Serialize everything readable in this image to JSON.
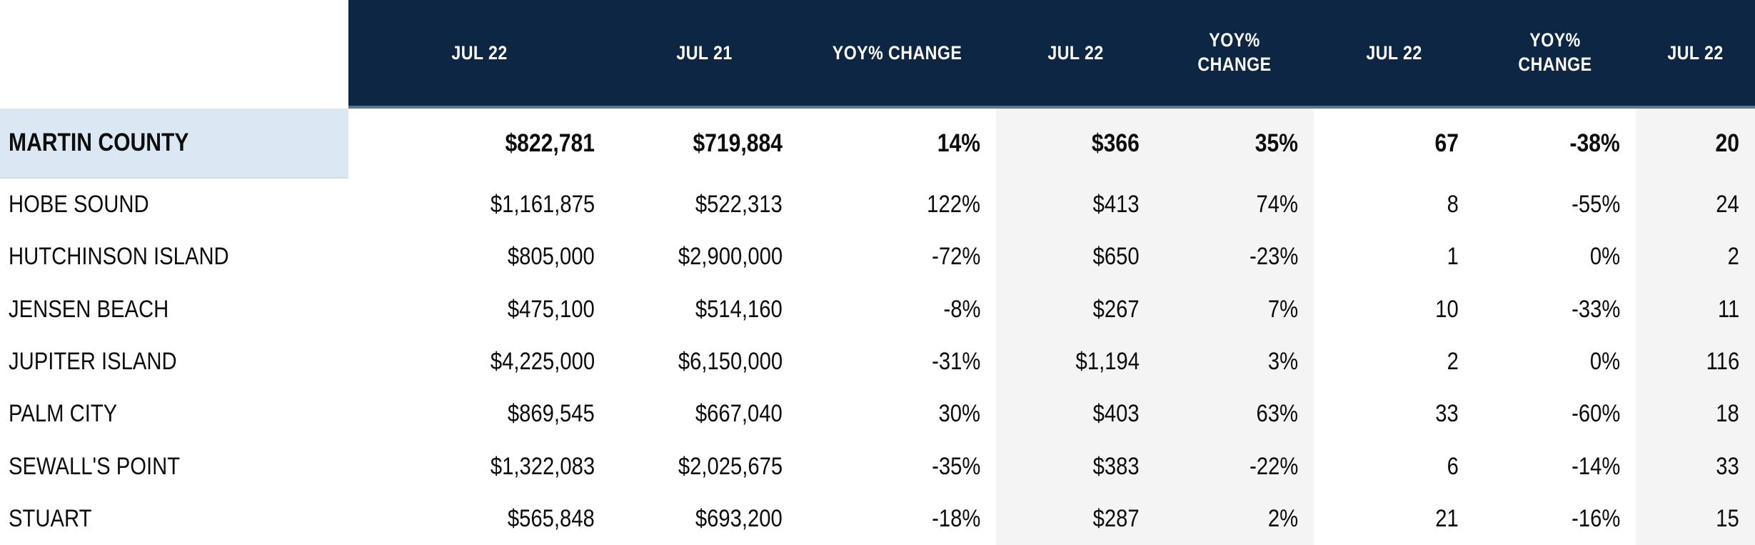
{
  "chart_data": {
    "type": "table",
    "columns": [
      "",
      "JUL 22",
      "JUL 21",
      "YOY% CHANGE",
      "JUL 22",
      "YOY% CHANGE",
      "JUL 22",
      "YOY% CHANGE",
      "JUL 22"
    ],
    "summary_row": {
      "name": "MARTIN COUNTY",
      "values": [
        "$822,781",
        "$719,884",
        "14%",
        "$366",
        "35%",
        "67",
        "-38%",
        "20"
      ]
    },
    "rows": [
      {
        "name": "HOBE SOUND",
        "values": [
          "$1,161,875",
          "$522,313",
          "122%",
          "$413",
          "74%",
          "8",
          "-55%",
          "24"
        ]
      },
      {
        "name": "HUTCHINSON ISLAND",
        "values": [
          "$805,000",
          "$2,900,000",
          "-72%",
          "$650",
          "-23%",
          "1",
          "0%",
          "2"
        ]
      },
      {
        "name": "JENSEN BEACH",
        "values": [
          "$475,100",
          "$514,160",
          "-8%",
          "$267",
          "7%",
          "10",
          "-33%",
          "11"
        ]
      },
      {
        "name": "JUPITER ISLAND",
        "values": [
          "$4,225,000",
          "$6,150,000",
          "-31%",
          "$1,194",
          "3%",
          "2",
          "0%",
          "116"
        ]
      },
      {
        "name": "PALM CITY",
        "values": [
          "$869,545",
          "$667,040",
          "30%",
          "$403",
          "63%",
          "33",
          "-60%",
          "18"
        ]
      },
      {
        "name": "SEWALL'S POINT",
        "values": [
          "$1,322,083",
          "$2,025,675",
          "-35%",
          "$383",
          "-22%",
          "6",
          "-14%",
          "33"
        ]
      },
      {
        "name": "STUART",
        "values": [
          "$565,848",
          "$693,200",
          "-18%",
          "$287",
          "2%",
          "21",
          "-16%",
          "15"
        ]
      }
    ],
    "layout": {
      "shaded_column_indexes": [
        4,
        5,
        8
      ],
      "header_wrap_column_indexes": [
        5,
        7
      ],
      "grid": false,
      "legend": "none"
    }
  },
  "colors": {
    "header_bg": "#0d2644",
    "header_text": "#ffffff",
    "header_border": "#5f768d",
    "summary_highlight": "#dbe8f4",
    "shaded_column": "#f4f4f4",
    "body_text": "#0d0d0d",
    "row_bg": "#ffffff"
  }
}
